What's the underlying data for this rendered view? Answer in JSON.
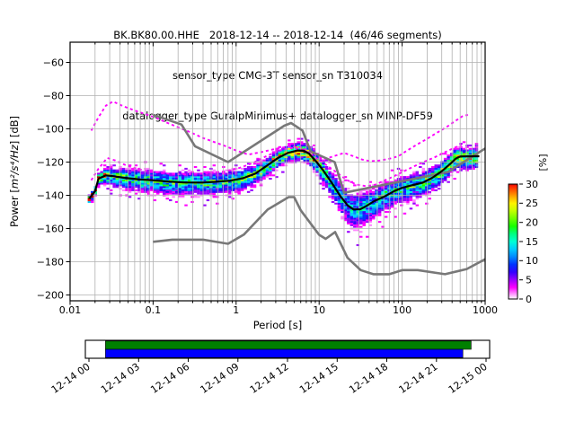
{
  "title": {
    "line1": "BK.BK80.00.HHE   2018-12-14 -- 2018-12-14  (46/46 segments)",
    "line2": "sensor_type CMG-3T sensor_sn T310034",
    "line3": "datalogger_type GuralpMinimus+ datalogger_sn MINP-DF59"
  },
  "axes": {
    "xlabel": "Period [s]",
    "ylabel_prefix": "Power [",
    "ylabel_math": "m²/s⁴/Hz",
    "ylabel_suffix": "] [dB]",
    "x_tick_labels": [
      "0.01",
      "0.1",
      "1",
      "10",
      "100",
      "1000"
    ],
    "x_tick_values": [
      0.01,
      0.1,
      1,
      10,
      100,
      1000
    ],
    "y_tick_labels": [
      "−60",
      "−80",
      "−100",
      "−120",
      "−140",
      "−160",
      "−180",
      "−200"
    ],
    "y_tick_values": [
      -60,
      -80,
      -100,
      -120,
      -140,
      -160,
      -180,
      -200
    ]
  },
  "colorbar": {
    "label": "[%]",
    "min": 0,
    "max": 30,
    "ticks": [
      0,
      5,
      10,
      15,
      20,
      25,
      30
    ]
  },
  "timeline": {
    "span_hours": 24,
    "tick_labels": [
      "12-14 00",
      "12-14 03",
      "12-14 06",
      "12-14 09",
      "12-14 12",
      "12-14 15",
      "12-14 18",
      "12-14 21",
      "12-15 00"
    ],
    "bars": [
      {
        "name": "coverage-span",
        "color": "#008000",
        "start_hours": 1.0,
        "end_hours": 23.1
      },
      {
        "name": "coverage-data",
        "color": "#0000ff",
        "start_hours": 1.0,
        "end_hours": 22.6
      }
    ]
  },
  "chart_data": {
    "type": "heatmap",
    "title": "BK.BK80.00.HHE 2018-12-14 -- 2018-12-14 (46/46 segments)",
    "xlabel": "Period [s]",
    "ylabel": "Power [m²/s⁴/Hz] [dB]",
    "xscale": "log",
    "xlim": [
      0.01,
      1000
    ],
    "ylim": [
      -205,
      -48
    ],
    "grid": true,
    "legend": "none",
    "colorbar": {
      "label": "[%]",
      "min": 0,
      "max": 30
    },
    "colormap_stops": [
      [
        0,
        "#ffffff"
      ],
      [
        1.5,
        "#ff85ff"
      ],
      [
        3,
        "#ff00ff"
      ],
      [
        5,
        "#9900ff"
      ],
      [
        7,
        "#3300ff"
      ],
      [
        9,
        "#0033ff"
      ],
      [
        11,
        "#0088ff"
      ],
      [
        13,
        "#00ccff"
      ],
      [
        15,
        "#00ffd5"
      ],
      [
        17,
        "#00ff80"
      ],
      [
        19,
        "#15ff00"
      ],
      [
        21,
        "#70ff00"
      ],
      [
        23,
        "#c3ff00"
      ],
      [
        25,
        "#fff200"
      ],
      [
        26.5,
        "#ffb300"
      ],
      [
        28,
        "#ff6a00"
      ],
      [
        29.5,
        "#ff1e00"
      ],
      [
        30,
        "#c00000"
      ]
    ],
    "series": [
      {
        "name": "NHNM-high-noise-model",
        "color": "#787878",
        "style": "solid",
        "width": 2.6,
        "points": [
          [
            0.1,
            -91.5
          ],
          [
            0.22,
            -97.4
          ],
          [
            0.32,
            -110.5
          ],
          [
            0.8,
            -120.0
          ],
          [
            3.8,
            -98.1
          ],
          [
            4.6,
            -96.5
          ],
          [
            6.3,
            -101.0
          ],
          [
            7.9,
            -113.5
          ],
          [
            15.4,
            -120.0
          ],
          [
            20.0,
            -138.5
          ],
          [
            354.8,
            -126.0
          ],
          [
            1000,
            -111.8
          ]
        ]
      },
      {
        "name": "NLNM-low-noise-model",
        "color": "#787878",
        "style": "solid",
        "width": 2.6,
        "points": [
          [
            0.1,
            -168.0
          ],
          [
            0.17,
            -166.7
          ],
          [
            0.4,
            -166.7
          ],
          [
            0.8,
            -169.2
          ],
          [
            1.24,
            -163.7
          ],
          [
            2.4,
            -148.6
          ],
          [
            4.3,
            -141.1
          ],
          [
            5.0,
            -141.1
          ],
          [
            6.0,
            -149.0
          ],
          [
            10.0,
            -163.8
          ],
          [
            12.0,
            -166.2
          ],
          [
            15.6,
            -162.1
          ],
          [
            21.9,
            -177.5
          ],
          [
            31.6,
            -185.0
          ],
          [
            45.0,
            -187.5
          ],
          [
            70.0,
            -187.5
          ],
          [
            101.0,
            -185.0
          ],
          [
            154.0,
            -185.0
          ],
          [
            328.0,
            -187.5
          ],
          [
            600.0,
            -184.4
          ],
          [
            1000.0,
            -178.5
          ]
        ]
      },
      {
        "name": "psd-mode",
        "color": "#000000",
        "style": "solid",
        "width": 2.2,
        "points": [
          [
            0.017,
            -142
          ],
          [
            0.02,
            -137.5
          ],
          [
            0.022,
            -130
          ],
          [
            0.027,
            -128
          ],
          [
            0.033,
            -128.5
          ],
          [
            0.046,
            -129.5
          ],
          [
            0.07,
            -130.5
          ],
          [
            0.1,
            -131
          ],
          [
            0.16,
            -131.8
          ],
          [
            0.25,
            -132.3
          ],
          [
            0.4,
            -132.3
          ],
          [
            0.6,
            -131.8
          ],
          [
            0.85,
            -131.2
          ],
          [
            1.2,
            -129.8
          ],
          [
            1.7,
            -127
          ],
          [
            2.3,
            -122.5
          ],
          [
            3.2,
            -117.5
          ],
          [
            4.2,
            -114.5
          ],
          [
            5.5,
            -113
          ],
          [
            6.5,
            -113.2
          ],
          [
            7.5,
            -114.8
          ],
          [
            9,
            -119
          ],
          [
            11,
            -124.5
          ],
          [
            14,
            -132
          ],
          [
            18,
            -140.5
          ],
          [
            22,
            -146
          ],
          [
            26,
            -148.5
          ],
          [
            31,
            -148.5
          ],
          [
            37,
            -146.5
          ],
          [
            46,
            -143.5
          ],
          [
            60,
            -141
          ],
          [
            80,
            -137.5
          ],
          [
            100,
            -135.5
          ],
          [
            130,
            -134
          ],
          [
            175,
            -132.5
          ],
          [
            230,
            -129.5
          ],
          [
            300,
            -125.5
          ],
          [
            380,
            -121
          ],
          [
            440,
            -118
          ],
          [
            480,
            -117
          ],
          [
            510,
            -116.6
          ],
          [
            850,
            -116.5
          ]
        ]
      },
      {
        "name": "outlier-psd-high",
        "color": "#ff00ff",
        "style": "dotted",
        "width": 1.9,
        "points": [
          [
            0.018,
            -101
          ],
          [
            0.022,
            -93
          ],
          [
            0.027,
            -86
          ],
          [
            0.033,
            -83.5
          ],
          [
            0.04,
            -85.5
          ],
          [
            0.05,
            -87.5
          ],
          [
            0.065,
            -89.5
          ],
          [
            0.085,
            -91.5
          ],
          [
            0.11,
            -93.5
          ],
          [
            0.15,
            -96.5
          ],
          [
            0.2,
            -99
          ],
          [
            0.28,
            -102
          ],
          [
            0.4,
            -105.5
          ],
          [
            0.55,
            -108
          ],
          [
            0.75,
            -110.5
          ],
          [
            1.0,
            -113
          ],
          [
            1.4,
            -115.5
          ],
          [
            2.0,
            -114
          ],
          [
            3.0,
            -112
          ],
          [
            4.5,
            -110.5
          ],
          [
            6.0,
            -111
          ],
          [
            7.5,
            -113.5
          ],
          [
            9.0,
            -115.5
          ],
          [
            12,
            -118
          ],
          [
            16,
            -116
          ],
          [
            20,
            -114.5
          ],
          [
            26,
            -116.5
          ],
          [
            33,
            -118.5
          ],
          [
            42,
            -119.5
          ],
          [
            55,
            -119
          ],
          [
            70,
            -118
          ],
          [
            90,
            -116.5
          ],
          [
            115,
            -113
          ],
          [
            150,
            -109.5
          ],
          [
            200,
            -106
          ],
          [
            260,
            -102.5
          ],
          [
            340,
            -99
          ],
          [
            430,
            -95.5
          ],
          [
            530,
            -92.5
          ],
          [
            620,
            -91.5
          ]
        ]
      },
      {
        "name": "outlier-psd-mid",
        "color": "#ff00ff",
        "style": "dotted",
        "width": 1.9,
        "points": [
          [
            0.018,
            -131
          ],
          [
            0.022,
            -124
          ],
          [
            0.028,
            -117.5
          ],
          [
            0.035,
            -119
          ],
          [
            0.05,
            -122.5
          ],
          [
            0.07,
            -124.5
          ],
          [
            0.1,
            -126
          ],
          [
            0.15,
            -127
          ],
          [
            0.22,
            -127.5
          ],
          [
            0.35,
            -127
          ],
          [
            0.5,
            -126.5
          ],
          [
            0.75,
            -125.5
          ],
          [
            1.1,
            -123.5
          ],
          [
            1.6,
            -120.5
          ],
          [
            2.3,
            -116.5
          ],
          [
            3.3,
            -113
          ],
          [
            4.5,
            -111.5
          ],
          [
            6.0,
            -112
          ],
          [
            7.5,
            -114.5
          ],
          [
            9.5,
            -118
          ],
          [
            12,
            -121.5
          ],
          [
            16,
            -126
          ],
          [
            21,
            -130.5
          ],
          [
            28,
            -133.5
          ],
          [
            37,
            -134.5
          ],
          [
            48,
            -133.5
          ],
          [
            62,
            -131
          ],
          [
            80,
            -128.5
          ],
          [
            105,
            -125.5
          ],
          [
            140,
            -122.5
          ],
          [
            190,
            -119.5
          ],
          [
            250,
            -117
          ],
          [
            330,
            -114
          ],
          [
            420,
            -111.5
          ],
          [
            520,
            -109.5
          ]
        ]
      }
    ],
    "histogram_band": {
      "period_step_octaves": 0.125,
      "db_bin_width": 1,
      "period_range": [
        0.017,
        850
      ],
      "sigma_db": [
        [
          0.017,
          1.1
        ],
        [
          0.022,
          1.6
        ],
        [
          0.03,
          2.5
        ],
        [
          0.05,
          3.1
        ],
        [
          0.1,
          3.4
        ],
        [
          0.3,
          3.4
        ],
        [
          1,
          3.2
        ],
        [
          2,
          2.8
        ],
        [
          4,
          2.4
        ],
        [
          6,
          2.4
        ],
        [
          9,
          2.8
        ],
        [
          14,
          3.8
        ],
        [
          20,
          5.0
        ],
        [
          30,
          5.3
        ],
        [
          45,
          4.6
        ],
        [
          70,
          4.2
        ],
        [
          120,
          3.8
        ],
        [
          250,
          3.4
        ],
        [
          500,
          3.0
        ],
        [
          850,
          2.8
        ]
      ],
      "peak_percent": [
        [
          0.017,
          32
        ],
        [
          0.022,
          26
        ],
        [
          0.03,
          18
        ],
        [
          0.05,
          15
        ],
        [
          0.1,
          14
        ],
        [
          0.3,
          14
        ],
        [
          1,
          15
        ],
        [
          2,
          17
        ],
        [
          4,
          24
        ],
        [
          6,
          28
        ],
        [
          9,
          20
        ],
        [
          14,
          13
        ],
        [
          20,
          11
        ],
        [
          30,
          11
        ],
        [
          45,
          12
        ],
        [
          70,
          13
        ],
        [
          120,
          14
        ],
        [
          250,
          16
        ],
        [
          400,
          18
        ],
        [
          550,
          21
        ],
        [
          850,
          23
        ]
      ]
    }
  }
}
